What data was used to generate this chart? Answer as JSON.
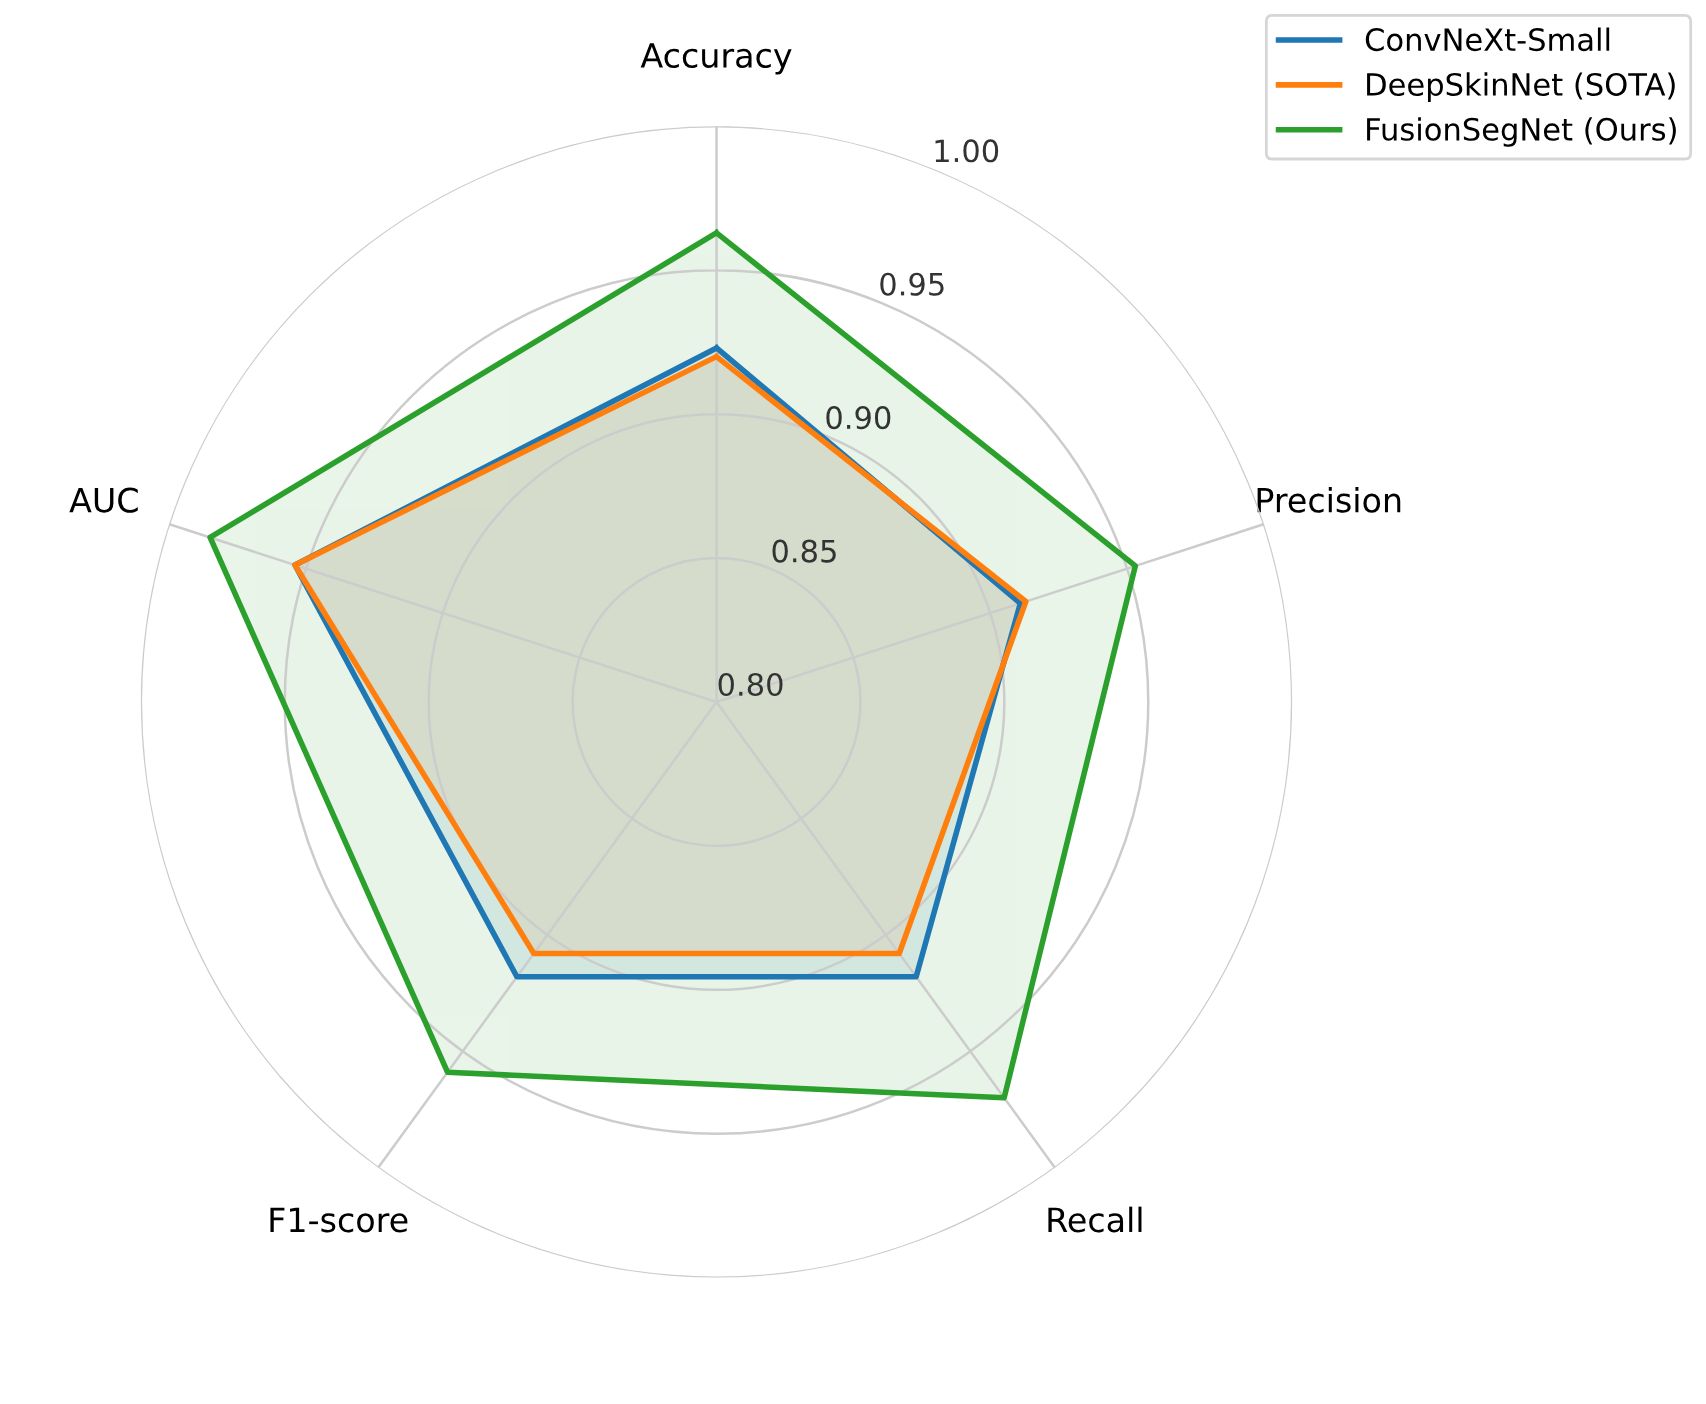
{
  "chart_data": {
    "type": "radar",
    "categories": [
      "Accuracy",
      "Precision",
      "Recall",
      "F1-score",
      "AUC"
    ],
    "series": [
      {
        "name": "ConvNeXt-Small",
        "color": "#1f77b4",
        "values": [
          0.923,
          0.911,
          0.918,
          0.918,
          0.954
        ]
      },
      {
        "name": "DeepSkinNet (SOTA)",
        "color": "#ff7f0e",
        "values": [
          0.92,
          0.913,
          0.908,
          0.908,
          0.954
        ]
      },
      {
        "name": "FusionSegNet (Ours)",
        "color": "#2ca02c",
        "values": [
          0.963,
          0.953,
          0.97,
          0.959,
          0.985
        ]
      }
    ],
    "ylim": [
      0.8,
      1.0
    ],
    "yticks": [
      {
        "value": 0.8,
        "label": "0.80"
      },
      {
        "value": 0.85,
        "label": "0.85"
      },
      {
        "value": 0.9,
        "label": "0.90"
      },
      {
        "value": 0.95,
        "label": "0.95"
      },
      {
        "value": 1.0,
        "label": "1.00"
      }
    ],
    "grid": true,
    "legend": "top right",
    "line_style": "solid",
    "marker": "none"
  }
}
